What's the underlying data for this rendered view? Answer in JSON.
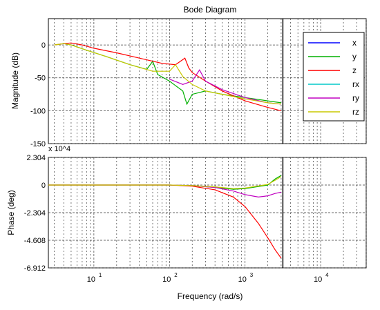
{
  "colors": {
    "background": "#ffffff",
    "axes_bg": "#ffffff",
    "grid": "#3a3a3a",
    "x": "#0000ff",
    "y": "#00b000",
    "z": "#ff0000",
    "rx": "#00c8c8",
    "ry": "#c000c0",
    "rz": "#c8c800",
    "marker": "#000000"
  },
  "chart_data": [
    {
      "type": "line",
      "title": "Bode Diagram",
      "xlabel": "",
      "ylabel": "Magnitude (dB)",
      "xscale": "log",
      "xlim": [
        2.5,
        40000
      ],
      "ylim": [
        -150,
        40
      ],
      "yticks": [
        0,
        -50,
        -100,
        -150
      ],
      "ytick_labels": [
        "0",
        "-50",
        "-100",
        "-150"
      ],
      "grid": true,
      "legend": [
        "x",
        "y",
        "z",
        "rx",
        "ry",
        "rz"
      ],
      "legend_position": "top-right",
      "vertical_marker_x": 3162,
      "series": [
        {
          "name": "x",
          "points": []
        },
        {
          "name": "y",
          "x": [
            3,
            4,
            5,
            8,
            15,
            30,
            50,
            60,
            70,
            100,
            150,
            170,
            200,
            300,
            500,
            1000,
            2000,
            3000
          ],
          "values": [
            0,
            2,
            0,
            -8,
            -18,
            -30,
            -37,
            -25,
            -45,
            -55,
            -70,
            -90,
            -75,
            -70,
            -75,
            -80,
            -85,
            -88
          ]
        },
        {
          "name": "z",
          "x": [
            3,
            4,
            5,
            7,
            10,
            20,
            40,
            80,
            120,
            160,
            180,
            200,
            300,
            500,
            1000,
            2000,
            3000
          ],
          "values": [
            0,
            2,
            3,
            0,
            -5,
            -12,
            -20,
            -28,
            -30,
            -20,
            -35,
            -42,
            -55,
            -70,
            -85,
            -95,
            -100
          ]
        },
        {
          "name": "rx",
          "points": []
        },
        {
          "name": "ry",
          "x": [
            100,
            150,
            200,
            250,
            300,
            500,
            1000,
            2000,
            3000
          ],
          "values": [
            -52,
            -60,
            -55,
            -38,
            -55,
            -68,
            -80,
            -88,
            -90
          ]
        },
        {
          "name": "rz",
          "x": [
            3,
            4,
            5,
            8,
            15,
            30,
            60,
            100,
            120,
            150,
            200,
            300,
            500,
            1000,
            2000,
            3000
          ],
          "values": [
            0,
            2,
            0,
            -8,
            -18,
            -30,
            -40,
            -40,
            -30,
            -48,
            -60,
            -70,
            -75,
            -82,
            -88,
            -90
          ]
        }
      ]
    },
    {
      "type": "line",
      "title": "",
      "xlabel": "Frequency  (rad/s)",
      "ylabel": "Phase (deg)",
      "xscale": "log",
      "xlim": [
        2.5,
        40000
      ],
      "ylim": [
        -6.912,
        2.304
      ],
      "y_multiplier": "x 10^4",
      "yticks": [
        2.304,
        0,
        -2.304,
        -4.608,
        -6.912
      ],
      "ytick_labels": [
        "2.304",
        "0",
        "-2.304",
        "-4.608",
        "-6.912"
      ],
      "xticks": [
        10,
        100,
        1000,
        10000
      ],
      "grid": true,
      "vertical_marker_x": 3162,
      "series": [
        {
          "name": "x",
          "points": []
        },
        {
          "name": "y",
          "x": [
            2.5,
            100,
            200,
            400,
            700,
            1000,
            2000,
            2500,
            3000
          ],
          "values": [
            0,
            0,
            -0.05,
            -0.2,
            -0.35,
            -0.3,
            0.0,
            0.5,
            0.8
          ]
        },
        {
          "name": "z",
          "x": [
            2.5,
            100,
            200,
            400,
            700,
            1000,
            1500,
            2000,
            2500,
            3000
          ],
          "values": [
            0,
            0,
            -0.1,
            -0.4,
            -1.0,
            -1.8,
            -3.2,
            -4.4,
            -5.4,
            -6.1
          ]
        },
        {
          "name": "rx",
          "points": []
        },
        {
          "name": "ry",
          "x": [
            2.5,
            100,
            200,
            400,
            700,
            1000,
            1500,
            2000,
            2500,
            3000
          ],
          "values": [
            0,
            0,
            -0.05,
            -0.2,
            -0.5,
            -0.8,
            -1.0,
            -0.9,
            -0.7,
            -0.6
          ]
        },
        {
          "name": "rz",
          "x": [
            2.5,
            100,
            200,
            400,
            700,
            1000,
            2000,
            2500,
            3000
          ],
          "values": [
            0,
            0,
            -0.05,
            -0.15,
            -0.3,
            -0.25,
            0.05,
            0.4,
            0.7
          ]
        }
      ]
    }
  ]
}
